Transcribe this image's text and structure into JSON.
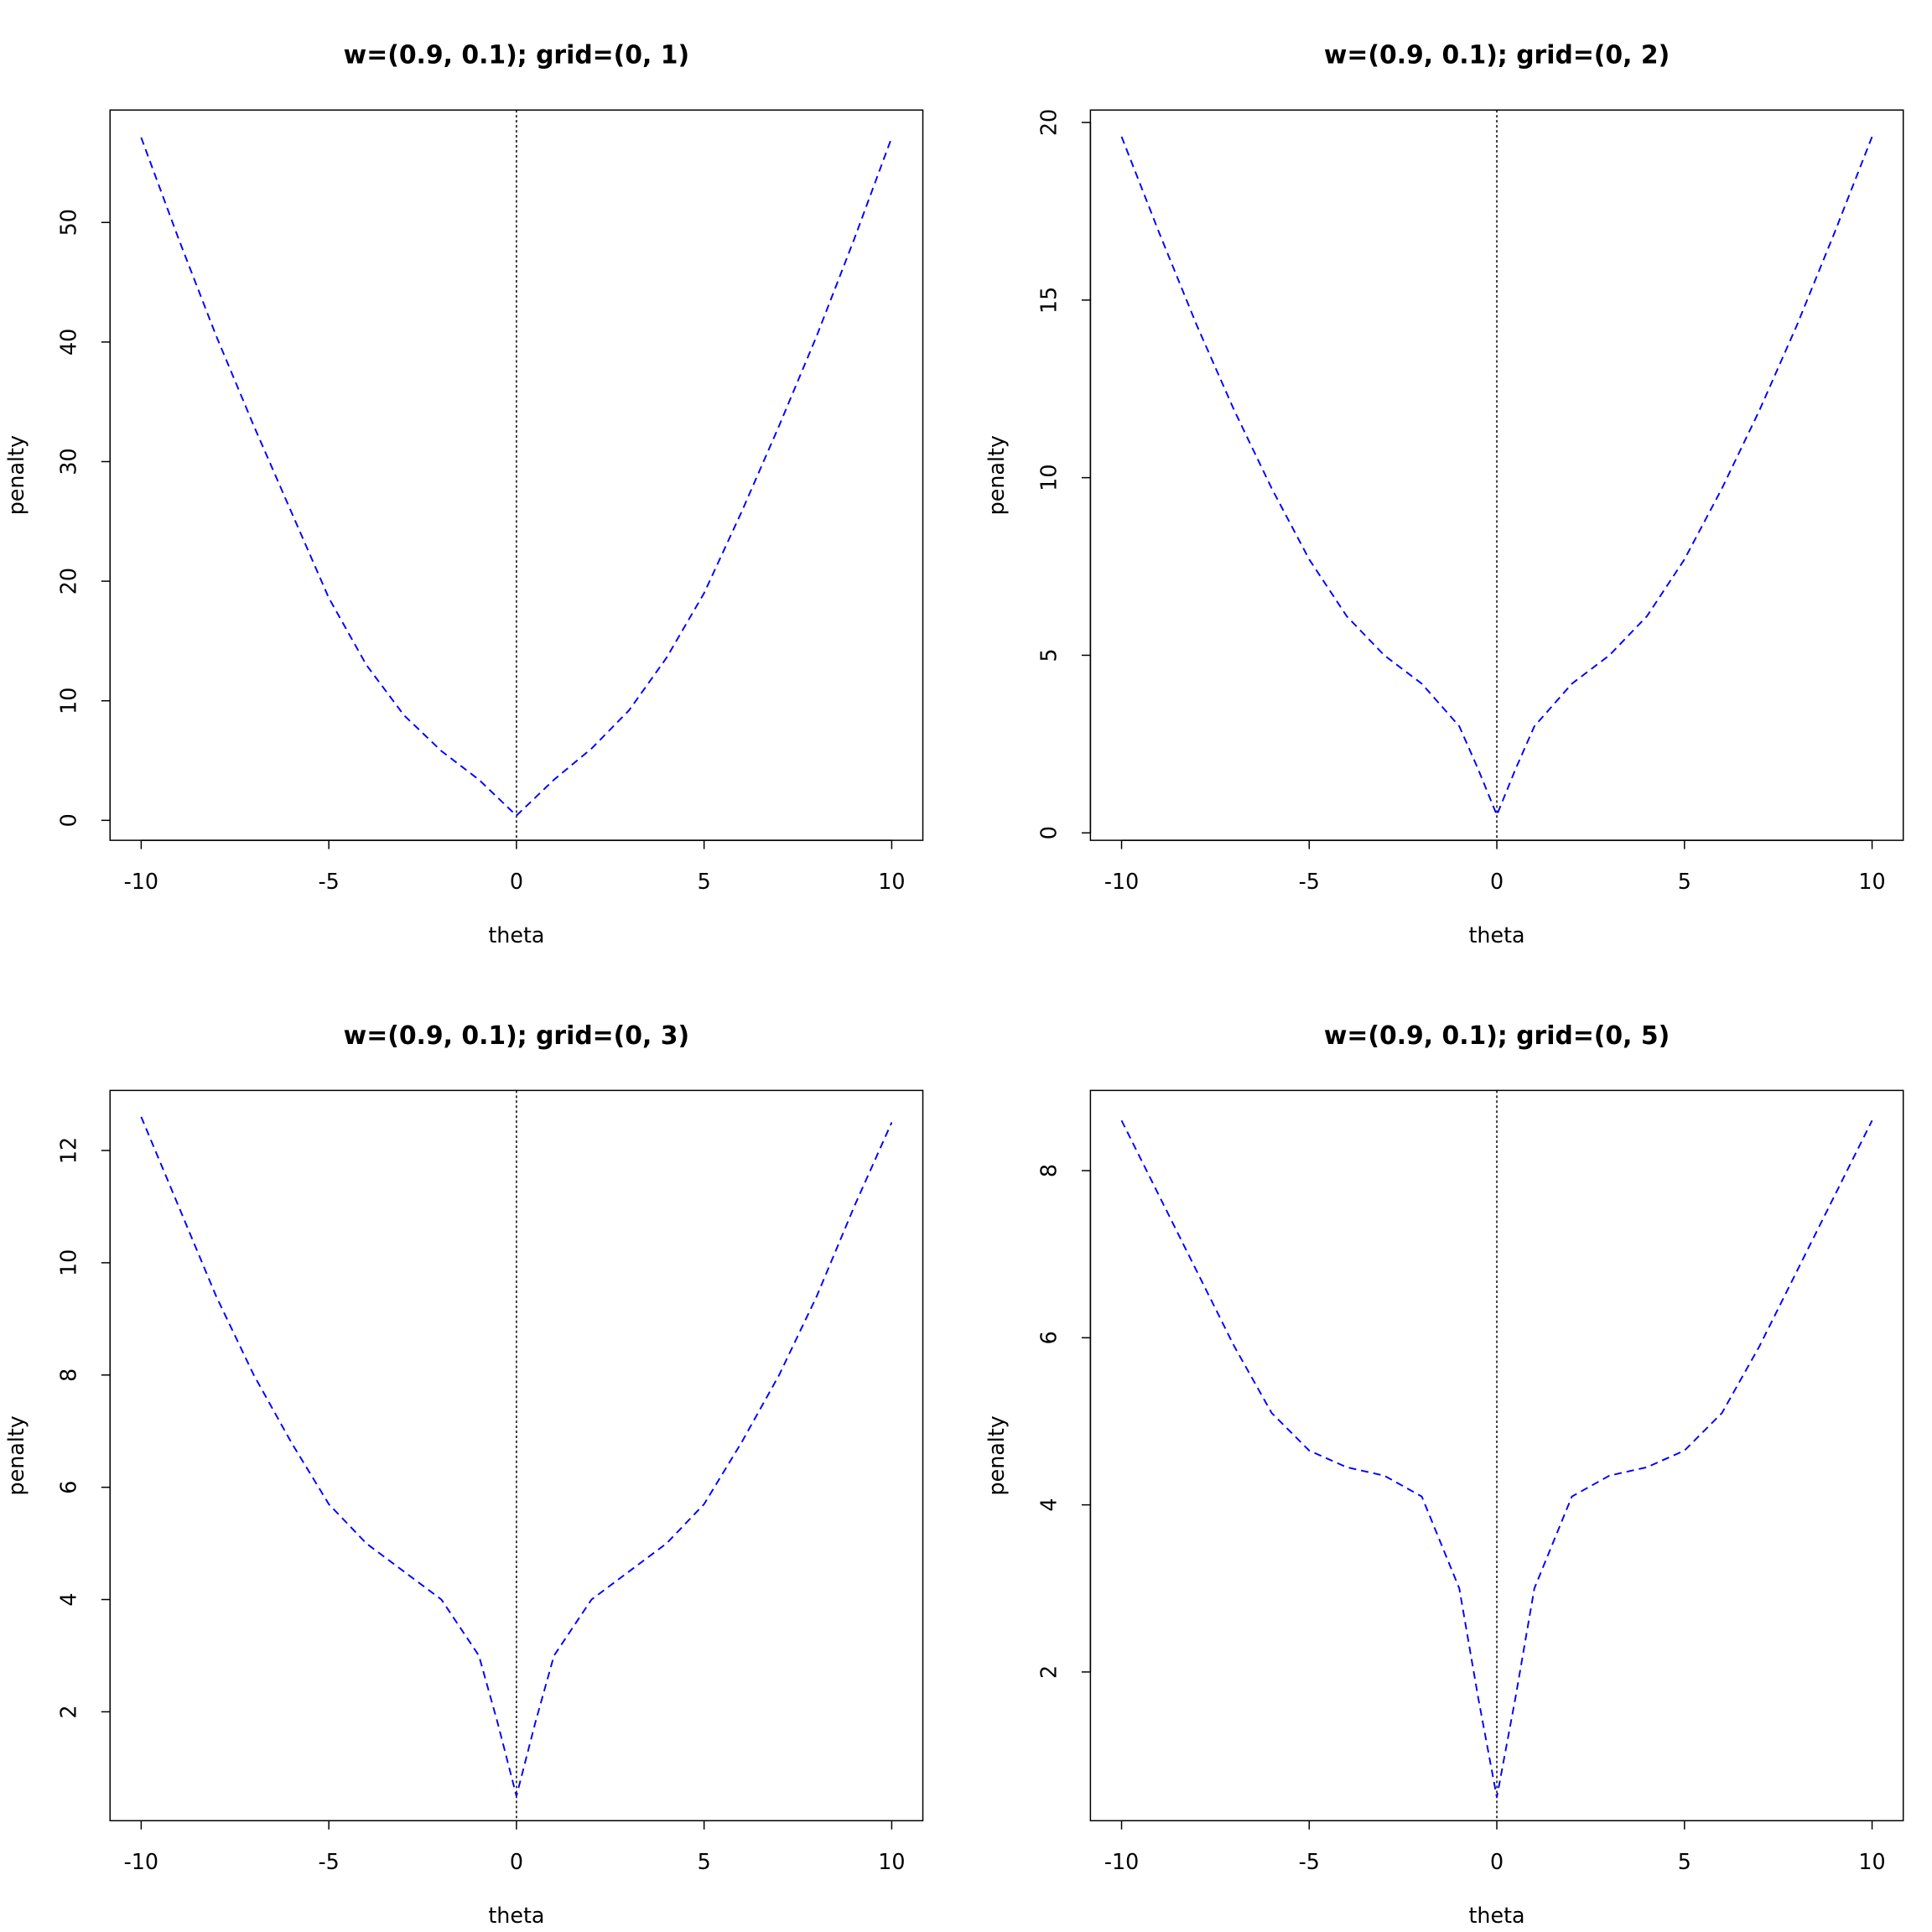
{
  "chart_data": [
    {
      "type": "line",
      "title": "w=(0.9, 0.1); grid=(0, 1)",
      "x_label": "theta",
      "y_label": "penalty",
      "x": [
        -10,
        -9,
        -8,
        -7,
        -6,
        -5,
        -4,
        -3,
        -2,
        -1,
        0,
        1,
        2,
        3,
        4,
        5,
        6,
        7,
        8,
        9,
        10
      ],
      "values": [
        57.1,
        48.6,
        40.5,
        33.0,
        25.8,
        18.6,
        13.0,
        8.8,
        5.8,
        3.4,
        0.4,
        3.4,
        6.0,
        9.2,
        13.6,
        19.0,
        25.8,
        33.0,
        40.5,
        48.6,
        57.1
      ],
      "color": "#0000ff",
      "dashed": true,
      "vline": 0,
      "xlim": [
        -10.83,
        10.83
      ],
      "ylim": [
        -1.67,
        59.4
      ],
      "xticks": [
        -10,
        -5,
        0,
        5,
        10
      ],
      "yticks": [
        0,
        10,
        20,
        30,
        40,
        50
      ]
    },
    {
      "type": "line",
      "title": "w=(0.9, 0.1); grid=(0, 2)",
      "x_label": "theta",
      "y_label": "penalty",
      "x": [
        -10,
        -9,
        -8,
        -7,
        -6,
        -5,
        -4,
        -3,
        -2,
        -1,
        -0.5,
        0,
        0.5,
        1,
        2,
        3,
        4,
        5,
        6,
        7,
        8,
        9,
        10
      ],
      "values": [
        19.6,
        16.9,
        14.3,
        11.9,
        9.7,
        7.7,
        6.1,
        5.0,
        4.2,
        3.0,
        1.8,
        0.5,
        1.8,
        3.0,
        4.2,
        5.0,
        6.1,
        7.7,
        9.7,
        11.9,
        14.3,
        16.9,
        19.6
      ],
      "color": "#0000ff",
      "dashed": true,
      "vline": 0,
      "xlim": [
        -10.83,
        10.83
      ],
      "ylim": [
        -0.21,
        20.35
      ],
      "xticks": [
        -10,
        -5,
        0,
        5,
        10
      ],
      "yticks": [
        0,
        5,
        10,
        15,
        20
      ]
    },
    {
      "type": "line",
      "title": "w=(0.9, 0.1); grid=(0, 3)",
      "x_label": "theta",
      "y_label": "penalty",
      "x": [
        -10,
        -9,
        -8,
        -7,
        -6,
        -5,
        -4,
        -3,
        -2,
        -1,
        -0.5,
        0,
        0.5,
        1,
        2,
        3,
        4,
        5,
        6,
        7,
        8,
        9,
        10
      ],
      "values": [
        12.6,
        11.0,
        9.4,
        8.0,
        6.8,
        5.7,
        5.0,
        4.5,
        4.0,
        3.0,
        1.8,
        0.5,
        1.8,
        3.0,
        4.0,
        4.5,
        5.0,
        5.7,
        6.8,
        8.0,
        9.4,
        11.0,
        12.5
      ],
      "color": "#0000ff",
      "dashed": true,
      "vline": 0,
      "xlim": [
        -10.83,
        10.83
      ],
      "ylim": [
        0.06,
        13.07
      ],
      "xticks": [
        -10,
        -5,
        0,
        5,
        10
      ],
      "yticks": [
        2,
        4,
        6,
        8,
        10,
        12
      ]
    },
    {
      "type": "line",
      "title": "w=(0.9, 0.1); grid=(0, 5)",
      "x_label": "theta",
      "y_label": "penalty",
      "x": [
        -10,
        -9,
        -8,
        -7,
        -6,
        -5,
        -4,
        -3,
        -2,
        -1,
        -0.5,
        0,
        0.5,
        1,
        2,
        3,
        4,
        5,
        6,
        7,
        8,
        9,
        10
      ],
      "values": [
        8.6,
        7.7,
        6.8,
        5.9,
        5.1,
        4.65,
        4.45,
        4.35,
        4.1,
        3.0,
        1.7,
        0.5,
        1.7,
        3.0,
        4.1,
        4.35,
        4.45,
        4.65,
        5.1,
        5.9,
        6.8,
        7.7,
        8.6
      ],
      "color": "#0000ff",
      "dashed": true,
      "vline": 0,
      "xlim": [
        -10.83,
        10.83
      ],
      "ylim": [
        0.22,
        8.96
      ],
      "xticks": [
        -10,
        -5,
        0,
        5,
        10
      ],
      "yticks": [
        2,
        4,
        6,
        8
      ]
    }
  ]
}
